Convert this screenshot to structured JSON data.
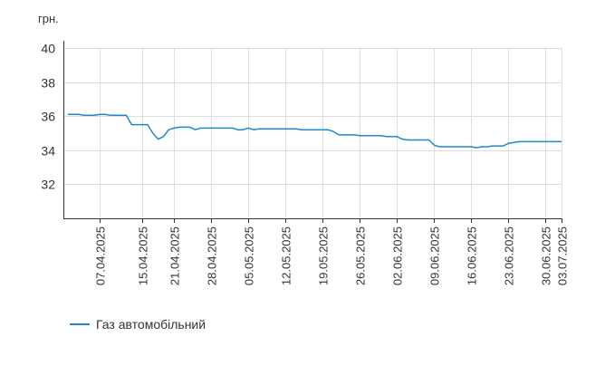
{
  "chart_data": {
    "type": "line",
    "y_unit_label": "грн.",
    "ylim": [
      30,
      40
    ],
    "yticks": [
      32,
      34,
      36,
      38,
      40
    ],
    "xlim": [
      "2025-04-01",
      "2025-07-03"
    ],
    "xticks": [
      "07.04.2025",
      "15.04.2025",
      "21.04.2025",
      "28.04.2025",
      "05.05.2025",
      "12.05.2025",
      "19.05.2025",
      "26.05.2025",
      "02.06.2025",
      "09.06.2025",
      "16.06.2025",
      "23.06.2025",
      "30.06.2025",
      "03.07.2025"
    ],
    "grid": true,
    "legend": "bottom-left",
    "colors": {
      "line": "#1f8ac9",
      "grid": "#dddddd",
      "axis": "#333333"
    },
    "series": [
      {
        "name": "Газ автомобільний",
        "points": [
          [
            "2025-04-01",
            36.1
          ],
          [
            "2025-04-03",
            36.1
          ],
          [
            "2025-04-04",
            36.05
          ],
          [
            "2025-04-05",
            36.05
          ],
          [
            "2025-04-06",
            36.05
          ],
          [
            "2025-04-07",
            36.1
          ],
          [
            "2025-04-08",
            36.1
          ],
          [
            "2025-04-09",
            36.05
          ],
          [
            "2025-04-12",
            36.05
          ],
          [
            "2025-04-13",
            35.5
          ],
          [
            "2025-04-16",
            35.5
          ],
          [
            "2025-04-17",
            35.0
          ],
          [
            "2025-04-18",
            34.65
          ],
          [
            "2025-04-19",
            34.8
          ],
          [
            "2025-04-20",
            35.2
          ],
          [
            "2025-04-21",
            35.3
          ],
          [
            "2025-04-22",
            35.35
          ],
          [
            "2025-04-24",
            35.35
          ],
          [
            "2025-04-25",
            35.2
          ],
          [
            "2025-04-26",
            35.3
          ],
          [
            "2025-04-27",
            35.3
          ],
          [
            "2025-05-02",
            35.3
          ],
          [
            "2025-05-03",
            35.2
          ],
          [
            "2025-05-04",
            35.2
          ],
          [
            "2025-05-05",
            35.3
          ],
          [
            "2025-05-06",
            35.2
          ],
          [
            "2025-05-07",
            35.25
          ],
          [
            "2025-05-14",
            35.25
          ],
          [
            "2025-05-15",
            35.2
          ],
          [
            "2025-05-20",
            35.2
          ],
          [
            "2025-05-21",
            35.1
          ],
          [
            "2025-05-22",
            34.9
          ],
          [
            "2025-05-25",
            34.9
          ],
          [
            "2025-05-26",
            34.85
          ],
          [
            "2025-05-30",
            34.85
          ],
          [
            "2025-05-31",
            34.8
          ],
          [
            "2025-06-02",
            34.8
          ],
          [
            "2025-06-03",
            34.65
          ],
          [
            "2025-06-04",
            34.6
          ],
          [
            "2025-06-08",
            34.6
          ],
          [
            "2025-06-09",
            34.3
          ],
          [
            "2025-06-10",
            34.2
          ],
          [
            "2025-06-16",
            34.2
          ],
          [
            "2025-06-17",
            34.15
          ],
          [
            "2025-06-18",
            34.2
          ],
          [
            "2025-06-19",
            34.2
          ],
          [
            "2025-06-20",
            34.25
          ],
          [
            "2025-06-22",
            34.25
          ],
          [
            "2025-06-23",
            34.4
          ],
          [
            "2025-06-24",
            34.45
          ],
          [
            "2025-06-25",
            34.5
          ],
          [
            "2025-07-03",
            34.5
          ]
        ]
      }
    ]
  }
}
